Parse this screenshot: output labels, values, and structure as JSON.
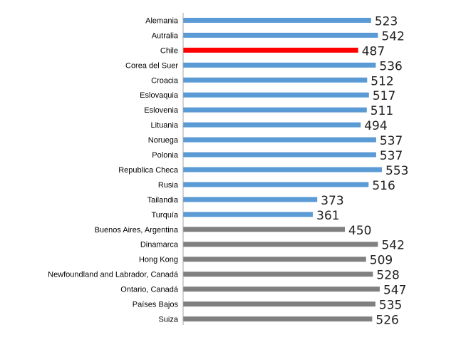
{
  "chart_data": {
    "type": "bar",
    "orientation": "horizontal",
    "categories": [
      "Alemania",
      "Autralia",
      "Chile",
      "Corea del Suer",
      "Croacia",
      "Eslovaquia",
      "Eslovenia",
      "Lituania",
      "Noruega",
      "Polonia",
      "Republica Checa",
      "Rusia",
      "Tailandia",
      "Turquía",
      "Buenos Aires, Argentina",
      "Dinamarca",
      "Hong Kong",
      "Newfoundland and Labrador, Canadá",
      "Ontario,  Canadá",
      "Países Bajos",
      "Suiza"
    ],
    "values": [
      523,
      542,
      487,
      536,
      512,
      517,
      511,
      494,
      537,
      537,
      553,
      516,
      373,
      361,
      450,
      542,
      509,
      528,
      547,
      535,
      526
    ],
    "value_labels": [
      "523",
      "542",
      "487",
      "536",
      "512",
      "517",
      "511",
      "494",
      "537",
      "537",
      "553",
      "516",
      "373",
      "361",
      "450",
      "542",
      "509",
      "528",
      "547",
      "535",
      "526"
    ],
    "bar_colors": [
      "#5b9bd5",
      "#5b9bd5",
      "#ff0000",
      "#5b9bd5",
      "#5b9bd5",
      "#5b9bd5",
      "#5b9bd5",
      "#5b9bd5",
      "#5b9bd5",
      "#5b9bd5",
      "#5b9bd5",
      "#5b9bd5",
      "#5b9bd5",
      "#5b9bd5",
      "#808080",
      "#808080",
      "#808080",
      "#808080",
      "#808080",
      "#808080",
      "#808080"
    ],
    "xlim": [
      0,
      600
    ],
    "title": "",
    "xlabel": "",
    "ylabel": "",
    "grid": false,
    "legend": "none",
    "axis_color": "#a6a6a6"
  }
}
